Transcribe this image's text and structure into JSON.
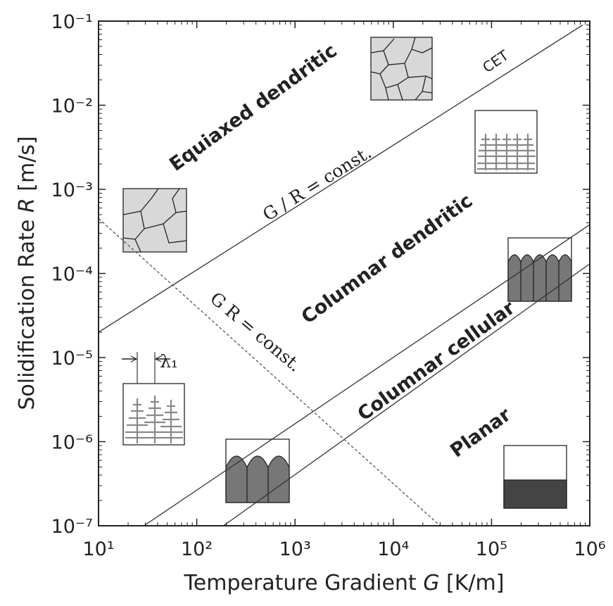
{
  "chart_data": {
    "type": "line",
    "xlabel": [
      "Temperature Gradient ",
      "G",
      " [K/m]"
    ],
    "ylabel": [
      "Solidification Rate ",
      "R",
      " [m/s]"
    ],
    "log_x": true,
    "log_y": true,
    "xlim": [
      10,
      1000000
    ],
    "ylim": [
      1e-07,
      0.1
    ],
    "xticks": [
      {
        "value": 10,
        "label": "10¹"
      },
      {
        "value": 100,
        "label": "10²"
      },
      {
        "value": 1000,
        "label": "10³"
      },
      {
        "value": 10000,
        "label": "10⁴"
      },
      {
        "value": 100000,
        "label": "10⁵"
      },
      {
        "value": 1000000,
        "label": "10⁶"
      }
    ],
    "yticks": [
      {
        "value": 1e-07,
        "label": "10⁻⁷"
      },
      {
        "value": 1e-06,
        "label": "10⁻⁶"
      },
      {
        "value": 1e-05,
        "label": "10⁻⁵"
      },
      {
        "value": 0.0001,
        "label": "10⁻⁴"
      },
      {
        "value": 0.001,
        "label": "10⁻³"
      },
      {
        "value": 0.01,
        "label": "10⁻²"
      },
      {
        "value": 0.1,
        "label": "10⁻¹"
      }
    ],
    "series": [
      {
        "color": "#333333",
        "dash": false,
        "x": [
          10,
          850000
        ],
        "values": [
          2e-05,
          0.09
        ]
      },
      {
        "color": "#333333",
        "dash": false,
        "x": [
          29,
          1000000
        ],
        "values": [
          1e-07,
          0.00038
        ]
      },
      {
        "color": "#333333",
        "dash": false,
        "x": [
          187,
          1000000
        ],
        "values": [
          1e-07,
          0.00013
        ]
      },
      {
        "color": "#555555",
        "dash": true,
        "x": [
          10,
          30000
        ],
        "values": [
          0.00045,
          1e-07
        ]
      }
    ],
    "annotations": [
      "Equiaxed dendritic",
      "Columnar dendritic",
      "Columnar cellular",
      "Planar",
      "G / R = const.",
      "G R = const.",
      "CET",
      "λ₁"
    ]
  }
}
